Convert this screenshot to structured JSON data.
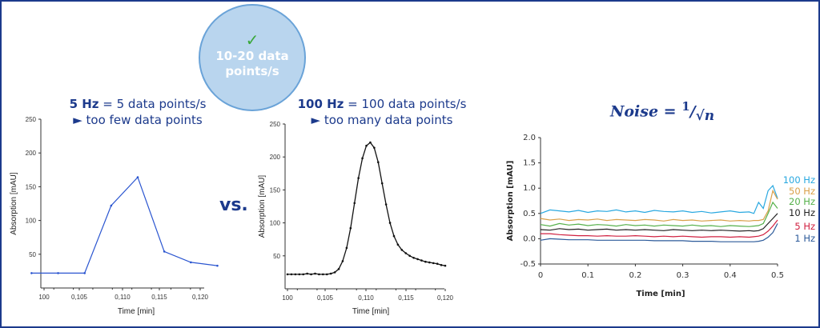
{
  "bubble": {
    "icon": "check-icon",
    "check": "✓",
    "line1": "10-20 data",
    "line2": "points/s"
  },
  "vs_label": "vs.",
  "panel_5hz": {
    "bold": "5 Hz",
    "rest": " = 5 data points/s",
    "line2": "► too few data points"
  },
  "panel_100hz": {
    "bold": "100 Hz",
    "rest": " = 100 data points/s",
    "line2": "► too many data points"
  },
  "noise_formula": {
    "lhs": "Noise = ",
    "num": "1",
    "slash": "/",
    "den": "√n"
  },
  "colors": {
    "text": "#1c3a8c",
    "bubble_fill": "#b9d5ee",
    "check": "#3aa83a"
  },
  "chart_data": [
    {
      "type": "line",
      "xlabel": "Time [min]",
      "ylabel": "Absorption [mAU]",
      "ylim": [
        0,
        250
      ],
      "xlim": [
        0.1,
        0.12
      ],
      "yticks": [
        "50",
        "100",
        "150",
        "200",
        "250"
      ],
      "xticks": [
        "100",
        "0,105",
        "0,110",
        "0,115",
        "0,120"
      ],
      "color": "#2a55d0",
      "markers": true,
      "x": [
        0.0984,
        0.1018,
        0.1052,
        0.1086,
        0.112,
        0.1154,
        0.1188,
        0.1222
      ],
      "y": [
        22,
        22,
        22,
        122,
        164,
        54,
        38,
        33
      ]
    },
    {
      "type": "line",
      "xlabel": "Time [min]",
      "ylabel": "Absorption [mAU]",
      "ylim": [
        0,
        250
      ],
      "xlim": [
        0.1,
        0.12
      ],
      "yticks": [
        "50",
        "100",
        "150",
        "200",
        "250"
      ],
      "xticks": [
        "100",
        "0,105",
        "0,110",
        "0,115",
        "0,120"
      ],
      "color": "#111111",
      "markers": true,
      "x": [
        0.1,
        0.1005,
        0.101,
        0.1015,
        0.102,
        0.1025,
        0.103,
        0.1035,
        0.104,
        0.1045,
        0.105,
        0.1055,
        0.106,
        0.1065,
        0.107,
        0.1075,
        0.108,
        0.1085,
        0.109,
        0.1095,
        0.11,
        0.1105,
        0.111,
        0.1115,
        0.112,
        0.1125,
        0.113,
        0.1135,
        0.114,
        0.1145,
        0.115,
        0.1155,
        0.116,
        0.1165,
        0.117,
        0.1175,
        0.118,
        0.1185,
        0.119,
        0.1195,
        0.12
      ],
      "y": [
        22,
        22,
        22,
        22,
        22,
        23,
        22,
        23,
        22,
        22,
        22,
        23,
        25,
        30,
        42,
        62,
        92,
        130,
        168,
        198,
        217,
        222,
        214,
        192,
        160,
        128,
        100,
        80,
        67,
        59,
        54,
        50,
        47,
        45,
        43,
        41,
        40,
        39,
        38,
        36,
        35
      ]
    },
    {
      "type": "line",
      "xlabel": "Time [min]",
      "ylabel": "Absorption [mAU]",
      "ylim": [
        -0.5,
        2.0
      ],
      "xlim": [
        0,
        0.5
      ],
      "yticks": [
        "-0.5",
        "0.0",
        "0.5",
        "1.0",
        "1.5",
        "2.0"
      ],
      "xticks": [
        "0",
        "0.1",
        "0.2",
        "0.3",
        "0.4",
        "0.5"
      ],
      "legend": "right",
      "x": [
        0,
        0.02,
        0.04,
        0.06,
        0.08,
        0.1,
        0.12,
        0.14,
        0.16,
        0.18,
        0.2,
        0.22,
        0.24,
        0.26,
        0.28,
        0.3,
        0.32,
        0.34,
        0.36,
        0.38,
        0.4,
        0.42,
        0.44,
        0.45,
        0.46,
        0.47,
        0.48,
        0.49,
        0.5
      ],
      "series": [
        {
          "name": "100 Hz",
          "color": "#29a8e0",
          "values": [
            0.5,
            0.57,
            0.55,
            0.53,
            0.56,
            0.52,
            0.55,
            0.54,
            0.57,
            0.53,
            0.55,
            0.52,
            0.56,
            0.54,
            0.53,
            0.55,
            0.52,
            0.54,
            0.51,
            0.53,
            0.55,
            0.52,
            0.53,
            0.5,
            0.72,
            0.6,
            0.95,
            1.05,
            0.8
          ]
        },
        {
          "name": "50 Hz",
          "color": "#d9a04a",
          "values": [
            0.4,
            0.37,
            0.39,
            0.36,
            0.38,
            0.37,
            0.39,
            0.36,
            0.38,
            0.37,
            0.36,
            0.38,
            0.37,
            0.35,
            0.38,
            0.36,
            0.37,
            0.35,
            0.36,
            0.37,
            0.35,
            0.36,
            0.35,
            0.36,
            0.36,
            0.38,
            0.55,
            0.95,
            0.78
          ]
        },
        {
          "name": "20 Hz",
          "color": "#55b04a",
          "values": [
            0.28,
            0.25,
            0.3,
            0.27,
            0.29,
            0.26,
            0.28,
            0.27,
            0.25,
            0.28,
            0.26,
            0.27,
            0.25,
            0.27,
            0.26,
            0.25,
            0.27,
            0.25,
            0.26,
            0.24,
            0.26,
            0.25,
            0.24,
            0.25,
            0.26,
            0.3,
            0.5,
            0.72,
            0.6
          ]
        },
        {
          "name": "10 Hz",
          "color": "#222222",
          "values": [
            0.18,
            0.17,
            0.2,
            0.18,
            0.19,
            0.17,
            0.18,
            0.19,
            0.17,
            0.18,
            0.17,
            0.18,
            0.17,
            0.16,
            0.18,
            0.17,
            0.16,
            0.17,
            0.16,
            0.17,
            0.16,
            0.15,
            0.16,
            0.15,
            0.16,
            0.2,
            0.3,
            0.4,
            0.5
          ]
        },
        {
          "name": "5 Hz",
          "color": "#d02040",
          "values": [
            0.1,
            0.1,
            0.08,
            0.07,
            0.06,
            0.06,
            0.05,
            0.06,
            0.05,
            0.05,
            0.06,
            0.05,
            0.04,
            0.05,
            0.04,
            0.05,
            0.04,
            0.03,
            0.04,
            0.04,
            0.03,
            0.04,
            0.03,
            0.04,
            0.05,
            0.08,
            0.15,
            0.25,
            0.37
          ]
        },
        {
          "name": "1 Hz",
          "color": "#2c5a9a",
          "values": [
            -0.03,
            0.0,
            -0.01,
            -0.02,
            -0.02,
            -0.02,
            -0.03,
            -0.03,
            -0.03,
            -0.03,
            -0.03,
            -0.03,
            -0.04,
            -0.04,
            -0.04,
            -0.04,
            -0.05,
            -0.05,
            -0.05,
            -0.06,
            -0.06,
            -0.06,
            -0.06,
            -0.06,
            -0.05,
            -0.03,
            0.03,
            0.12,
            0.3
          ]
        }
      ]
    }
  ]
}
